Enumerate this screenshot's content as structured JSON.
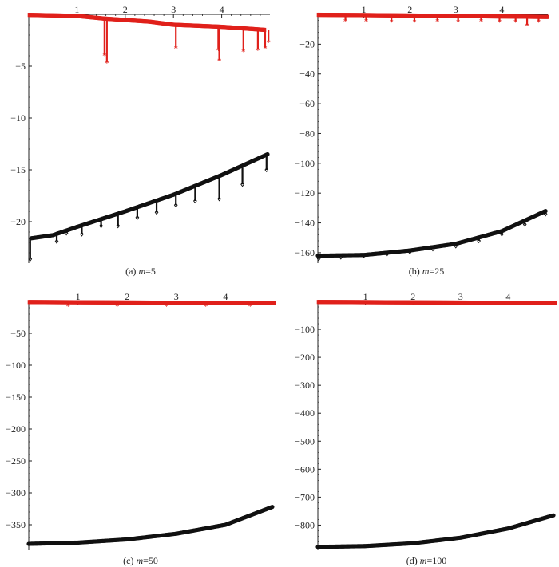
{
  "colors": {
    "upper_series": "#e0201b",
    "lower_series": "#111111",
    "axis": "#222222"
  },
  "chart_data": [
    {
      "type": "scatter",
      "panel_id": "a",
      "caption": {
        "prefix": "(a) ",
        "var": "m",
        "suffix": "=5"
      },
      "xlim": [
        0,
        5.0
      ],
      "ylim": [
        -24,
        0
      ],
      "x_ticks": [
        1,
        2,
        3,
        4
      ],
      "y_ticks": [
        -5,
        -10,
        -15,
        -20
      ],
      "series": [
        {
          "color": "#e0201b",
          "marker": "asterisk",
          "baseline": [
            [
              0.0,
              -0.05
            ],
            [
              1.0,
              -0.15
            ],
            [
              1.55,
              -0.4
            ],
            [
              2.5,
              -0.7
            ],
            [
              3.0,
              -1.0
            ],
            [
              4.0,
              -1.2
            ],
            [
              4.9,
              -1.5
            ]
          ],
          "dips": [
            [
              1.57,
              -3.9
            ],
            [
              1.62,
              -4.6
            ],
            [
              3.05,
              -3.2
            ],
            [
              3.93,
              -3.4
            ],
            [
              3.95,
              -4.4
            ],
            [
              4.45,
              -3.5
            ],
            [
              4.75,
              -3.4
            ],
            [
              4.9,
              -3.2
            ],
            [
              4.97,
              -2.6
            ]
          ]
        },
        {
          "color": "#111111",
          "marker": "diamond",
          "baseline": [
            [
              0.05,
              -21.6
            ],
            [
              0.5,
              -21.3
            ],
            [
              1.0,
              -20.5
            ],
            [
              2.0,
              -19.0
            ],
            [
              3.0,
              -17.4
            ],
            [
              4.0,
              -15.5
            ],
            [
              4.95,
              -13.5
            ]
          ],
          "dips": [
            [
              0.03,
              -23.6
            ],
            [
              0.58,
              -21.9
            ],
            [
              0.78,
              -21.1
            ],
            [
              1.1,
              -21.2
            ],
            [
              1.5,
              -20.4
            ],
            [
              1.85,
              -20.4
            ],
            [
              2.25,
              -19.6
            ],
            [
              2.65,
              -19.1
            ],
            [
              3.05,
              -18.4
            ],
            [
              3.45,
              -18.0
            ],
            [
              3.95,
              -17.8
            ],
            [
              4.43,
              -16.4
            ],
            [
              4.93,
              -15.0
            ]
          ]
        }
      ]
    },
    {
      "type": "scatter",
      "panel_id": "b",
      "caption": {
        "prefix": "(b) ",
        "var": "m",
        "suffix": "=25"
      },
      "xlim": [
        0,
        5.0
      ],
      "ylim": [
        -167,
        0
      ],
      "x_ticks": [
        1,
        2,
        3,
        4
      ],
      "y_ticks": [
        -20,
        -40,
        -60,
        -80,
        -100,
        -120,
        -140,
        -160
      ],
      "series": [
        {
          "color": "#e0201b",
          "marker": "asterisk",
          "baseline": [
            [
              0.0,
              -0.3
            ],
            [
              1.0,
              -0.5
            ],
            [
              2.0,
              -0.8
            ],
            [
              3.0,
              -1.1
            ],
            [
              4.0,
              -1.4
            ],
            [
              5.0,
              -1.7
            ]
          ],
          "dips": [
            [
              0.6,
              -4.0
            ],
            [
              1.05,
              -4.0
            ],
            [
              1.6,
              -4.5
            ],
            [
              2.1,
              -4.5
            ],
            [
              2.6,
              -4.0
            ],
            [
              3.05,
              -4.5
            ],
            [
              3.55,
              -4.0
            ],
            [
              3.95,
              -4.5
            ],
            [
              4.3,
              -4.5
            ],
            [
              4.55,
              -7.0
            ],
            [
              4.8,
              -4.5
            ]
          ]
        },
        {
          "color": "#111111",
          "marker": "diamond",
          "baseline": [
            [
              0.0,
              -162
            ],
            [
              1.0,
              -161.5
            ],
            [
              2.0,
              -158.5
            ],
            [
              3.0,
              -154
            ],
            [
              4.0,
              -145.5
            ],
            [
              4.95,
              -132
            ]
          ],
          "dips": [
            [
              0.02,
              -164
            ],
            [
              0.5,
              -163
            ],
            [
              1.0,
              -162
            ],
            [
              1.5,
              -161
            ],
            [
              2.0,
              -159.5
            ],
            [
              2.5,
              -157.5
            ],
            [
              3.0,
              -155.5
            ],
            [
              3.5,
              -152
            ],
            [
              4.0,
              -147.5
            ],
            [
              4.5,
              -141
            ],
            [
              4.95,
              -134
            ]
          ]
        }
      ]
    },
    {
      "type": "scatter",
      "panel_id": "c",
      "caption": {
        "prefix": "(c) ",
        "var": "m",
        "suffix": "=50"
      },
      "xlim": [
        0,
        5.0
      ],
      "ylim": [
        -390,
        0
      ],
      "x_ticks": [
        1,
        2,
        3,
        4
      ],
      "y_ticks": [
        -50,
        -100,
        -150,
        -200,
        -250,
        -300,
        -350
      ],
      "series": [
        {
          "color": "#e0201b",
          "marker": "asterisk",
          "baseline": [
            [
              0.0,
              -1
            ],
            [
              2.5,
              -2
            ],
            [
              5.0,
              -3
            ]
          ],
          "dips": [
            [
              0.8,
              -6
            ],
            [
              1.8,
              -6
            ],
            [
              2.8,
              -6
            ],
            [
              3.6,
              -6
            ],
            [
              4.5,
              -6
            ]
          ]
        },
        {
          "color": "#111111",
          "marker": "diamond",
          "baseline": [
            [
              0.0,
              -380
            ],
            [
              1.0,
              -378
            ],
            [
              2.0,
              -373
            ],
            [
              3.0,
              -364
            ],
            [
              4.0,
              -350
            ],
            [
              4.95,
              -322
            ]
          ],
          "dips": []
        }
      ]
    },
    {
      "type": "scatter",
      "panel_id": "d",
      "caption": {
        "prefix": "(d) ",
        "var": "m",
        "suffix": "=100"
      },
      "xlim": [
        0,
        5.0
      ],
      "ylim": [
        -890,
        0
      ],
      "x_ticks": [
        1,
        2,
        3,
        4
      ],
      "y_ticks": [
        -100,
        -200,
        -300,
        -400,
        -500,
        -600,
        -700,
        -800
      ],
      "series": [
        {
          "color": "#e0201b",
          "marker": "asterisk",
          "baseline": [
            [
              0.0,
              -2
            ],
            [
              2.5,
              -4
            ],
            [
              5.0,
              -6
            ]
          ],
          "dips": []
        },
        {
          "color": "#111111",
          "marker": "diamond",
          "baseline": [
            [
              0.0,
              -878
            ],
            [
              1.0,
              -875
            ],
            [
              2.0,
              -865
            ],
            [
              3.0,
              -845
            ],
            [
              4.0,
              -812
            ],
            [
              4.95,
              -765
            ]
          ],
          "dips": []
        }
      ]
    }
  ]
}
